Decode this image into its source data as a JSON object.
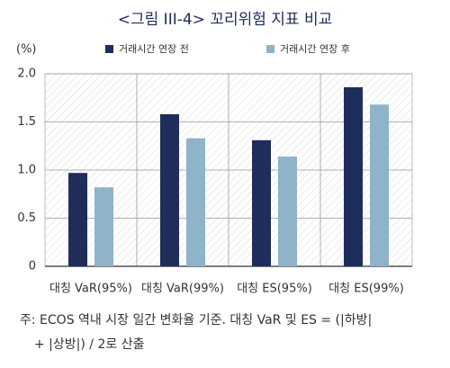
{
  "chart_data": {
    "type": "bar",
    "title": "<그림 III-4> 꼬리위험 지표 비교",
    "y_unit": "(%)",
    "categories": [
      "대칭 VaR(95%)",
      "대칭 VaR(99%)",
      "대칭 ES(95%)",
      "대칭 ES(99%)"
    ],
    "series": [
      {
        "name": "거래시간 연장 전",
        "color": "#1f2d5a",
        "values": [
          0.97,
          1.58,
          1.31,
          1.86
        ]
      },
      {
        "name": "거래시간 연장 후",
        "color": "#8fb3c8",
        "values": [
          0.82,
          1.33,
          1.14,
          1.68
        ]
      }
    ],
    "ylim": [
      0,
      2
    ],
    "yticks": [
      0,
      0.5,
      {
        "value": 1,
        "label": "1.0"
      },
      1.5,
      {
        "value": 2,
        "label": "2.0"
      }
    ],
    "note": [
      "주: ECOS 역내 시장 일간 변화율 기준. 대칭 VaR 및 ES = (|하방|",
      "+ |상방|) / 2로 산출"
    ]
  }
}
